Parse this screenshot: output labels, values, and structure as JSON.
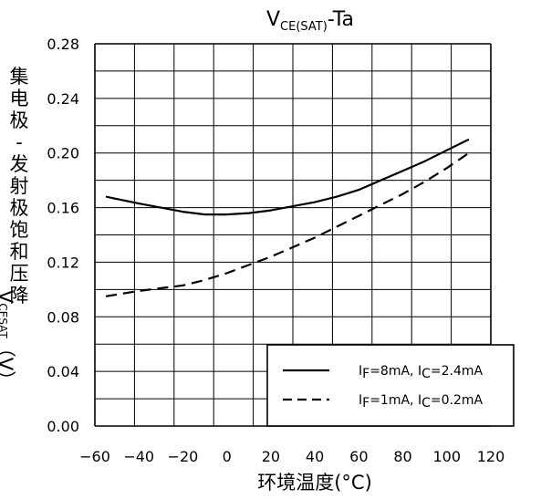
{
  "chart_data": {
    "type": "line",
    "title": {
      "main": "V",
      "sub": "CE(SAT)",
      "tail": "-Ta"
    },
    "xlabel": "环境温度(°C)",
    "ylabel": {
      "chars": [
        "集",
        "电",
        "极",
        "-",
        "发",
        "射",
        "极",
        "饱",
        "和",
        "压",
        "降"
      ],
      "symbol": "V",
      "symbol_sub": "CESAT",
      "unit": "（V）"
    },
    "xlim": [
      -60,
      120
    ],
    "ylim": [
      0.0,
      0.28
    ],
    "xticks": [
      "−60",
      "−40",
      "−20",
      "0",
      "20",
      "40",
      "60",
      "80",
      "100",
      "120"
    ],
    "xtick_values": [
      -60,
      -40,
      -20,
      0,
      20,
      40,
      60,
      80,
      100,
      120
    ],
    "yticks": [
      "0.00",
      "0.04",
      "0.08",
      "0.12",
      "0.16",
      "0.20",
      "0.24",
      "0.28"
    ],
    "ytick_values": [
      0.0,
      0.04,
      0.08,
      0.12,
      0.16,
      0.2,
      0.24,
      0.28
    ],
    "grid": true,
    "legend_position": "bottom-right",
    "series": [
      {
        "name": "IF=8mA, IC=2.4mA",
        "name_parts": [
          [
            "I",
            ""
          ],
          [
            "F",
            "sub"
          ],
          [
            "=8mA, I",
            ""
          ],
          [
            "C",
            "sub"
          ],
          [
            "=2.4mA",
            ""
          ]
        ],
        "style": "solid",
        "x": [
          -55,
          -40,
          -30,
          -20,
          -10,
          0,
          10,
          20,
          30,
          40,
          50,
          60,
          70,
          80,
          90,
          100,
          110
        ],
        "y": [
          0.168,
          0.163,
          0.16,
          0.157,
          0.155,
          0.155,
          0.156,
          0.158,
          0.161,
          0.164,
          0.168,
          0.173,
          0.18,
          0.187,
          0.194,
          0.202,
          0.21
        ]
      },
      {
        "name": "IF=1mA, IC=0.2mA",
        "name_parts": [
          [
            "I",
            ""
          ],
          [
            "F",
            "sub"
          ],
          [
            "=1mA, I",
            ""
          ],
          [
            "C",
            "sub"
          ],
          [
            "=0.2mA",
            ""
          ]
        ],
        "style": "dashed",
        "x": [
          -55,
          -40,
          -30,
          -20,
          -10,
          0,
          10,
          20,
          30,
          40,
          50,
          60,
          70,
          80,
          90,
          100,
          110
        ],
        "y": [
          0.095,
          0.099,
          0.101,
          0.103,
          0.107,
          0.112,
          0.118,
          0.124,
          0.131,
          0.138,
          0.146,
          0.154,
          0.162,
          0.17,
          0.179,
          0.189,
          0.2
        ]
      }
    ]
  }
}
